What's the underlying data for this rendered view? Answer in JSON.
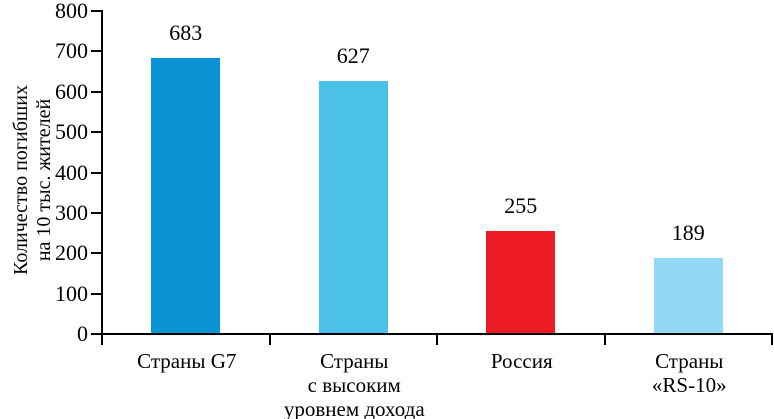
{
  "chart_data": {
    "type": "bar",
    "title": "",
    "ylabel": "Количество погибших на 10 тыс. жителей",
    "ylabel_lines": [
      "Количество погибших",
      "на 10 тыс. жителей"
    ],
    "xlabel": "",
    "categories": [
      "Страны G7",
      "Страны с высоким уровнем дохода",
      "Россия",
      "Страны «RS-10»"
    ],
    "category_label_lines": [
      [
        "Страны G7"
      ],
      [
        "Страны",
        "с высоким",
        "уровнем дохода"
      ],
      [
        "Россия"
      ],
      [
        "Страны",
        "«RS-10»"
      ]
    ],
    "values": [
      683,
      627,
      255,
      189
    ],
    "value_labels": [
      "683",
      "627",
      "255",
      "189"
    ],
    "bar_colors": [
      "#0a93d5",
      "#4bc0e9",
      "#ed1c24",
      "#92d9f8"
    ],
    "ylim": [
      0,
      800
    ],
    "ytick_step": 100,
    "ytick_values": [
      0,
      100,
      200,
      300,
      400,
      500,
      600,
      700,
      800
    ],
    "ytick_labels": [
      "0",
      "100",
      "200",
      "300",
      "400",
      "500",
      "600",
      "700",
      "800"
    ],
    "grid": false,
    "legend": false,
    "axis_color": "#000000",
    "background_color": "#ffffff",
    "text_color": "#000000"
  }
}
